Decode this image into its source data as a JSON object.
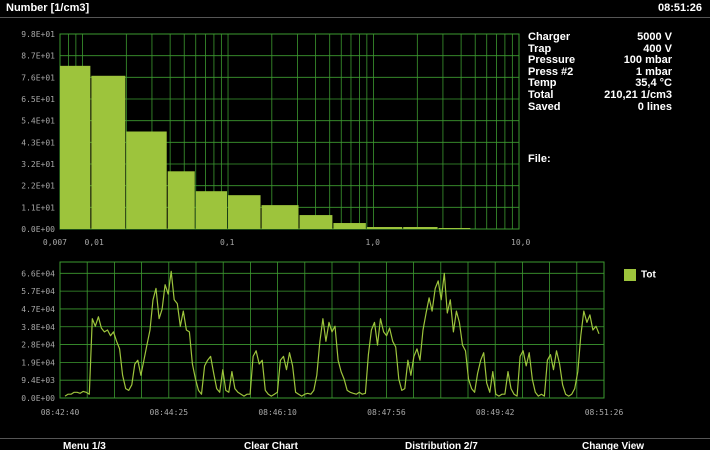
{
  "title": "Number [1/cm3]",
  "clock": "08:51:26",
  "info": [
    {
      "label": "Charger",
      "value": "5000 V"
    },
    {
      "label": "Trap",
      "value": "400 V"
    },
    {
      "label": "Pressure",
      "value": "100 mbar"
    },
    {
      "label": "Press #2",
      "value": "1 mbar"
    },
    {
      "label": "Temp",
      "value": "35,4 °C"
    },
    {
      "label": "Total",
      "value": "210,21 1/cm3"
    },
    {
      "label": "Saved",
      "value": "0 lines"
    }
  ],
  "file_label": "File:",
  "legend": "Tot",
  "menu": [
    "Menu 1/3",
    "Clear Chart",
    "Distribution 2/7",
    "Change View"
  ],
  "colors": {
    "bar": "#9dc43c",
    "grid": "#3d9a30",
    "line": "#9dc43c"
  },
  "chart_data": [
    {
      "type": "bar",
      "y_ticks": [
        "0.0E+00",
        "1.1E+01",
        "2.2E+01",
        "3.2E+01",
        "4.3E+01",
        "5.4E+01",
        "6.5E+01",
        "7.6E+01",
        "8.7E+01",
        "9.8E+01"
      ],
      "x_ticks": [
        "0,007",
        "0,01",
        "0,1",
        "1,0",
        "10,0"
      ],
      "xlim": [
        0.007,
        10
      ],
      "ylim": [
        0,
        98
      ],
      "x_scale": "log",
      "bins": [
        {
          "x0": 0.007,
          "x1": 0.0115,
          "value": 82
        },
        {
          "x0": 0.0115,
          "x1": 0.02,
          "value": 77
        },
        {
          "x0": 0.02,
          "x1": 0.0385,
          "value": 49
        },
        {
          "x0": 0.0385,
          "x1": 0.06,
          "value": 29
        },
        {
          "x0": 0.06,
          "x1": 0.1,
          "value": 19
        },
        {
          "x0": 0.1,
          "x1": 0.17,
          "value": 17
        },
        {
          "x0": 0.17,
          "x1": 0.31,
          "value": 12
        },
        {
          "x0": 0.31,
          "x1": 0.53,
          "value": 7
        },
        {
          "x0": 0.53,
          "x1": 0.9,
          "value": 3
        },
        {
          "x0": 0.9,
          "x1": 1.6,
          "value": 1
        },
        {
          "x0": 1.6,
          "x1": 2.8,
          "value": 1
        },
        {
          "x0": 2.8,
          "x1": 4.7,
          "value": 0.5
        }
      ],
      "grid": true
    },
    {
      "type": "line",
      "series": [
        {
          "name": "Tot",
          "values": [
            1000,
            2000,
            2000,
            3000,
            3000,
            2500,
            3500,
            3000,
            2000,
            42000,
            38000,
            43000,
            37000,
            35000,
            36000,
            33000,
            35000,
            30000,
            26000,
            12000,
            5000,
            4000,
            7000,
            18000,
            20000,
            12000,
            20000,
            28000,
            36000,
            52000,
            58000,
            42000,
            47000,
            60000,
            55000,
            67000,
            52000,
            50000,
            38000,
            46000,
            36000,
            35000,
            18000,
            10000,
            4000,
            2000,
            17000,
            20000,
            22000,
            13000,
            5000,
            3000,
            15000,
            4000,
            3000,
            14000,
            5000,
            3000,
            2000,
            1000,
            2000,
            2000,
            22000,
            25000,
            18000,
            20000,
            4000,
            2000,
            1000,
            2000,
            3000,
            20000,
            22000,
            15000,
            24000,
            17000,
            3000,
            2000,
            1000,
            2000,
            2500,
            2000,
            4000,
            12000,
            30000,
            42000,
            30000,
            40000,
            35000,
            38000,
            20000,
            14000,
            10000,
            4000,
            3000,
            2500,
            2000,
            3000,
            2000,
            2500,
            23000,
            36000,
            40000,
            28000,
            42000,
            35000,
            33000,
            37000,
            30000,
            27000,
            10000,
            4000,
            5000,
            20000,
            12000,
            22000,
            26000,
            20000,
            36000,
            45000,
            53000,
            46000,
            58000,
            62000,
            52000,
            66000,
            45000,
            52000,
            35000,
            46000,
            40000,
            28000,
            25000,
            10000,
            5000,
            3000,
            13000,
            20000,
            24000,
            8000,
            3000,
            14000,
            2000,
            1000,
            2000,
            2000,
            14000,
            5000,
            2000,
            1000,
            22000,
            25000,
            17000,
            24000,
            10000,
            3000,
            1000,
            2000,
            1000,
            20000,
            23000,
            15000,
            25000,
            18000,
            7000,
            2000,
            1000,
            2000,
            5000,
            14000,
            33000,
            46000,
            40000,
            44000,
            36000,
            38000,
            34000
          ]
        }
      ],
      "y_ticks": [
        "0.0E+00",
        "9.4E+03",
        "1.9E+04",
        "2.8E+04",
        "3.8E+04",
        "4.7E+04",
        "5.7E+04",
        "6.6E+04"
      ],
      "ylim": [
        0,
        72000
      ],
      "x_ticks": [
        "08:42:40",
        "08:44:25",
        "08:46:10",
        "08:47:56",
        "08:49:42",
        "08:51:26"
      ],
      "grid": true
    }
  ]
}
